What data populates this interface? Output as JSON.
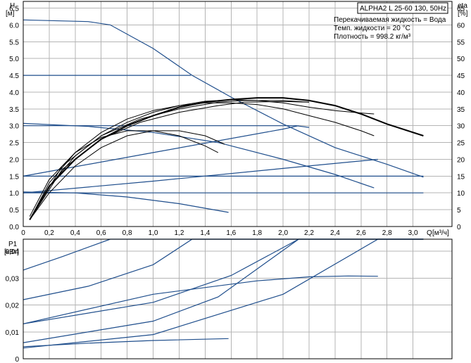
{
  "chart_data": [
    {
      "type": "line",
      "name": "head-and-efficiency",
      "title": "ALPHA2 L 25-60 130, 50Hz",
      "fluid_info": [
        "Перекачиваемая жидкость = Вода",
        "Темп. жидкости = 20 °C",
        "Плотность = 998.2 кг/м³"
      ],
      "ylabel": "H",
      "yunit": "[м]",
      "y2label": "eta",
      "y2unit": "[%]",
      "xlabel": "Q",
      "xunit": "[м³/ч]",
      "xlim": [
        0,
        3.3
      ],
      "ylim": [
        0,
        6.7
      ],
      "y2lim": [
        0,
        67
      ],
      "xticks": [
        "0",
        "0,2",
        "0,4",
        "0,6",
        "0,8",
        "1,0",
        "1,2",
        "1,4",
        "1,6",
        "1,8",
        "2,0",
        "2,2",
        "2,4",
        "2,6",
        "2,8",
        "3,0"
      ],
      "yticks": [
        "0.0",
        "0.5",
        "1.0",
        "1.5",
        "2.0",
        "2.5",
        "3.0",
        "3.5",
        "4.0",
        "4.5",
        "5.0",
        "5.5",
        "6.0",
        "6.5"
      ],
      "y2ticks": [
        "0",
        "5",
        "10",
        "15",
        "20",
        "25",
        "30",
        "35",
        "40",
        "45",
        "50",
        "55",
        "60",
        "65"
      ],
      "grid": true,
      "colors": {
        "curves": "#1f4e8c",
        "eta": "#000000",
        "grid": "#b4b4b4"
      },
      "head_curves": [
        {
          "x": [
            0,
            0.5,
            0.67,
            1.0,
            1.3,
            1.6,
            2.0,
            2.4,
            2.8,
            3.08
          ],
          "y": [
            6.15,
            6.1,
            6.0,
            5.3,
            4.5,
            3.85,
            3.05,
            2.35,
            1.85,
            1.47
          ]
        },
        {
          "x": [
            0,
            1.0,
            1.29
          ],
          "y": [
            4.5,
            4.5,
            4.5
          ]
        },
        {
          "x": [
            0,
            2.1,
            2.2
          ],
          "y": [
            3.0,
            3.0,
            2.95
          ]
        },
        {
          "x": [
            0,
            0.5,
            1.0,
            1.5,
            2.0,
            2.4,
            2.7
          ],
          "y": [
            3.07,
            2.98,
            2.8,
            2.5,
            2.0,
            1.55,
            1.15
          ]
        },
        {
          "x": [
            0,
            0.4,
            0.8,
            1.2,
            1.58
          ],
          "y": [
            1.03,
            1.0,
            0.88,
            0.68,
            0.42
          ]
        },
        {
          "x": [
            0,
            3.08
          ],
          "y": [
            1.5,
            1.5
          ]
        },
        {
          "x": [
            0,
            3.08
          ],
          "y": [
            1.0,
            1.0
          ]
        }
      ],
      "system_curves": [
        {
          "x": [
            0,
            1.0,
            2.0,
            2.12
          ],
          "y": [
            1.5,
            2.2,
            2.9,
            3.0
          ]
        },
        {
          "x": [
            0,
            1.0,
            2.0,
            2.73
          ],
          "y": [
            1.0,
            1.35,
            1.73,
            2.0
          ]
        }
      ],
      "eta_curves": [
        {
          "x": [
            0.05,
            0.2,
            0.4,
            0.6,
            0.8,
            1.0,
            1.2,
            1.4,
            1.6,
            1.8,
            2.0,
            2.2,
            2.4,
            2.6,
            2.8,
            3.08
          ],
          "y": [
            2,
            12,
            20,
            26,
            30,
            33,
            35.5,
            37,
            37.8,
            38.3,
            38.3,
            37.5,
            36,
            33.5,
            30.5,
            27
          ]
        },
        {
          "x": [
            0.05,
            0.2,
            0.4,
            0.6,
            0.8,
            1.0,
            1.2,
            1.4,
            1.6,
            1.8,
            2.0,
            2.2,
            2.4,
            2.6,
            2.7
          ],
          "y": [
            2,
            12,
            21,
            27,
            31,
            34,
            36,
            37.3,
            37.7,
            37.5,
            36.8,
            35.5,
            34.5,
            33.8,
            33.5
          ]
        },
        {
          "x": [
            0.05,
            0.2,
            0.4,
            0.6,
            0.8,
            1.0,
            1.2,
            1.4,
            1.6,
            1.8,
            2.0,
            2.2,
            2.4,
            2.6,
            2.7
          ],
          "y": [
            2,
            13,
            22,
            28,
            32,
            34.5,
            36,
            36.8,
            36.8,
            36.3,
            35,
            33,
            31,
            28.5,
            27
          ]
        },
        {
          "x": [
            0.05,
            0.2,
            0.4,
            0.6,
            0.8,
            1.0,
            1.2,
            1.4,
            1.5
          ],
          "y": [
            3,
            14,
            22,
            26.5,
            28.5,
            28.5,
            27,
            24,
            22
          ]
        },
        {
          "x": [
            0.05,
            0.3,
            0.6,
            0.9,
            1.2,
            1.5,
            1.7,
            2.0,
            2.2
          ],
          "y": [
            2,
            18,
            27,
            32,
            35,
            37,
            37.5,
            37.5,
            37
          ]
        },
        {
          "x": [
            0.05,
            0.3,
            0.6,
            0.9,
            1.2,
            1.5,
            1.7,
            2.0,
            2.2
          ],
          "y": [
            2,
            17,
            26,
            31,
            34,
            36,
            37,
            37.2,
            37
          ]
        },
        {
          "x": [
            0.05,
            0.2,
            0.4,
            0.6,
            0.8,
            1.0,
            1.2,
            1.4,
            1.55
          ],
          "y": [
            2,
            10,
            18,
            23.5,
            27,
            28.5,
            28.5,
            27,
            24.5
          ]
        }
      ]
    },
    {
      "type": "line",
      "name": "power",
      "ylabel": "P1",
      "yunit": "[кВт]",
      "xlim": [
        0,
        3.3
      ],
      "ylim": [
        0,
        0.0445
      ],
      "yticks": [
        "0",
        "0,01",
        "0,02",
        "0,03",
        "0,04"
      ],
      "grid": true,
      "colors": {
        "curves": "#1f4e8c"
      },
      "power_curves": [
        {
          "x": [
            0,
            0.3,
            0.67,
            3.08
          ],
          "y": [
            0.033,
            0.038,
            0.0445,
            0.0445
          ]
        },
        {
          "x": [
            0,
            0.5,
            1.0,
            1.3,
            3.08
          ],
          "y": [
            0.022,
            0.027,
            0.035,
            0.0445,
            0.0445
          ]
        },
        {
          "x": [
            0,
            1.0,
            1.6,
            2.12,
            3.08
          ],
          "y": [
            0.013,
            0.021,
            0.031,
            0.0445,
            0.0445
          ]
        },
        {
          "x": [
            0,
            1.0,
            1.5,
            2.12
          ],
          "y": [
            0.006,
            0.014,
            0.023,
            0.0445
          ]
        },
        {
          "x": [
            0,
            1.0,
            2.0,
            2.73,
            3.08
          ],
          "y": [
            0.004,
            0.009,
            0.024,
            0.0445,
            0.0445
          ]
        },
        {
          "x": [
            0,
            1.0,
            1.8,
            2.2,
            2.5,
            2.73
          ],
          "y": [
            0.013,
            0.024,
            0.029,
            0.0305,
            0.0308,
            0.0307
          ]
        },
        {
          "x": [
            0,
            0.5,
            1.0,
            1.58
          ],
          "y": [
            0.0045,
            0.0058,
            0.0068,
            0.0075
          ]
        }
      ]
    }
  ]
}
